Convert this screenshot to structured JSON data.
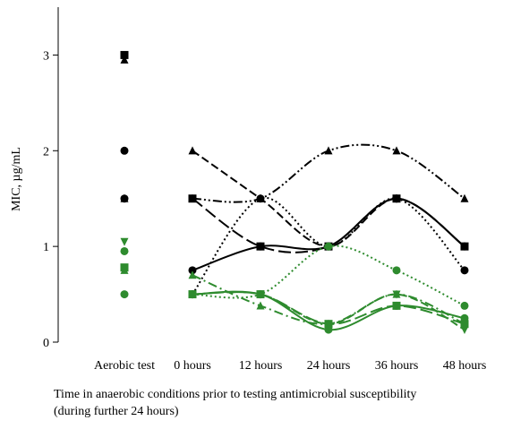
{
  "chart_data": {
    "type": "line",
    "y_label": "MIC, µg/mL",
    "x_label": [
      "Time in anaerobic conditions prior to testing antimicrobial susceptibility",
      "(during further 24 hours)"
    ],
    "aerobic_label": "Aerobic test",
    "categories": [
      "0 hours",
      "12 hours",
      "24 hours",
      "36 hours",
      "48 hours"
    ],
    "ylim": [
      0,
      3.5
    ],
    "yticks": [
      0,
      1,
      2,
      3
    ],
    "series": [
      {
        "color": "#000000",
        "marker": "triangle-up",
        "dash": "dash",
        "aerobic": 2.95,
        "values": [
          2,
          1.5,
          1,
          1.5,
          1
        ]
      },
      {
        "color": "#000000",
        "marker": "triangle-up",
        "dash": "dash-dot-dot",
        "aerobic": 1.5,
        "values": [
          1.5,
          1.5,
          2,
          2,
          1.5
        ]
      },
      {
        "color": "#000000",
        "marker": "square",
        "dash": "long-dash",
        "aerobic": 3,
        "values": [
          1.5,
          1,
          1,
          1.5,
          1
        ]
      },
      {
        "color": "#000000",
        "marker": "circle",
        "dash": "solid",
        "aerobic": 2,
        "values": [
          0.75,
          1,
          1,
          1.5,
          1
        ]
      },
      {
        "color": "#000000",
        "marker": "circle",
        "dash": "dot",
        "aerobic": 1.5,
        "values": [
          0.5,
          1.5,
          1,
          1.5,
          0.75
        ]
      },
      {
        "color": "#2e8b2e",
        "marker": "circle",
        "dash": "dot",
        "aerobic": 0.95,
        "values": [
          0.5,
          0.5,
          1,
          0.75,
          0.38
        ]
      },
      {
        "color": "#2e8b2e",
        "marker": "circle",
        "dash": "solid",
        "aerobic": 0.5,
        "values": [
          0.5,
          0.5,
          0.13,
          0.38,
          0.25
        ]
      },
      {
        "color": "#2e8b2e",
        "marker": "triangle-up",
        "dash": "dash-dot",
        "aerobic": 0.75,
        "values": [
          0.7,
          0.38,
          0.19,
          0.5,
          0.19
        ]
      },
      {
        "color": "#2e8b2e",
        "marker": "square",
        "dash": "long-dash",
        "aerobic": 0.78,
        "values": [
          0.5,
          0.5,
          0.19,
          0.38,
          0.19
        ]
      },
      {
        "color": "#2e8b2e",
        "marker": "triangle-down",
        "dash": "dash",
        "aerobic": 1.05,
        "values": [
          0.5,
          0.5,
          0.19,
          0.5,
          0.13
        ]
      }
    ]
  }
}
